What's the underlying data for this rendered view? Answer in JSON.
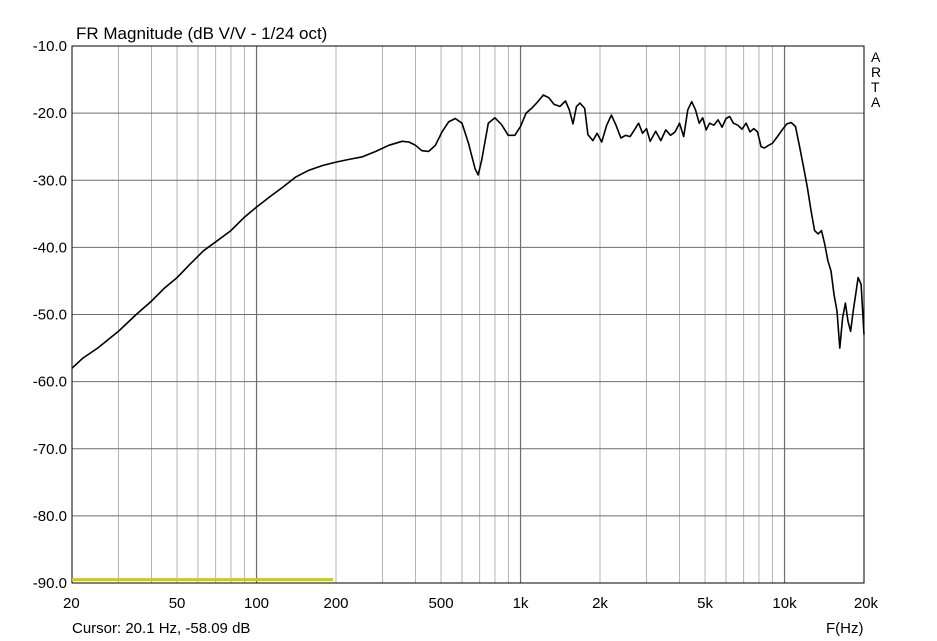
{
  "chart_data": {
    "type": "line",
    "title": "FR Magnitude (dB V/V - 1/24 oct)",
    "xlabel": "F(Hz)",
    "ylabel": "",
    "xscale": "log",
    "xlim": [
      20,
      20000
    ],
    "ylim": [
      -90,
      -10
    ],
    "grid": true,
    "x_ticks": [
      {
        "value": 20,
        "label": "20"
      },
      {
        "value": 50,
        "label": "50"
      },
      {
        "value": 100,
        "label": "100"
      },
      {
        "value": 200,
        "label": "200"
      },
      {
        "value": 500,
        "label": "500"
      },
      {
        "value": 1000,
        "label": "1k"
      },
      {
        "value": 2000,
        "label": "2k"
      },
      {
        "value": 5000,
        "label": "5k"
      },
      {
        "value": 10000,
        "label": "10k"
      },
      {
        "value": 20000,
        "label": "20k"
      }
    ],
    "y_ticks": [
      {
        "value": -10,
        "label": "-10.0"
      },
      {
        "value": -20,
        "label": "-20.0"
      },
      {
        "value": -30,
        "label": "-30.0"
      },
      {
        "value": -40,
        "label": "-40.0"
      },
      {
        "value": -50,
        "label": "-50.0"
      },
      {
        "value": -60,
        "label": "-60.0"
      },
      {
        "value": -70,
        "label": "-70.0"
      },
      {
        "value": -80,
        "label": "-80.0"
      },
      {
        "value": -90,
        "label": "-90.0"
      }
    ],
    "series": [
      {
        "color": "#000000",
        "points": [
          [
            20,
            -58
          ],
          [
            22,
            -56.5
          ],
          [
            25,
            -55
          ],
          [
            30,
            -52.5
          ],
          [
            35,
            -50
          ],
          [
            40,
            -48
          ],
          [
            45,
            -46
          ],
          [
            50,
            -44.5
          ],
          [
            56,
            -42.5
          ],
          [
            63,
            -40.5
          ],
          [
            71,
            -39
          ],
          [
            80,
            -37.5
          ],
          [
            90,
            -35.5
          ],
          [
            100,
            -34
          ],
          [
            112,
            -32.5
          ],
          [
            126,
            -31
          ],
          [
            141,
            -29.5
          ],
          [
            158,
            -28.5
          ],
          [
            178,
            -27.8
          ],
          [
            200,
            -27.3
          ],
          [
            224,
            -26.9
          ],
          [
            252,
            -26.5
          ],
          [
            283,
            -25.7
          ],
          [
            317,
            -24.8
          ],
          [
            356,
            -24.2
          ],
          [
            378,
            -24.3
          ],
          [
            400,
            -24.8
          ],
          [
            423,
            -25.6
          ],
          [
            449,
            -25.7
          ],
          [
            476,
            -24.8
          ],
          [
            504,
            -22.8
          ],
          [
            534,
            -21.3
          ],
          [
            566,
            -20.8
          ],
          [
            600,
            -21.5
          ],
          [
            635,
            -24.5
          ],
          [
            673,
            -28.3
          ],
          [
            691,
            -29.2
          ],
          [
            713,
            -27
          ],
          [
            755,
            -21.5
          ],
          [
            800,
            -20.7
          ],
          [
            847,
            -21.7
          ],
          [
            898,
            -23.3
          ],
          [
            951,
            -23.3
          ],
          [
            1000,
            -22
          ],
          [
            1050,
            -20
          ],
          [
            1100,
            -19.3
          ],
          [
            1150,
            -18.5
          ],
          [
            1220,
            -17.3
          ],
          [
            1280,
            -17.7
          ],
          [
            1340,
            -18.7
          ],
          [
            1410,
            -19
          ],
          [
            1480,
            -18.2
          ],
          [
            1530,
            -19.5
          ],
          [
            1580,
            -21.6
          ],
          [
            1630,
            -19
          ],
          [
            1680,
            -18.5
          ],
          [
            1750,
            -19.3
          ],
          [
            1800,
            -23.2
          ],
          [
            1880,
            -24.1
          ],
          [
            1950,
            -23
          ],
          [
            2030,
            -24.3
          ],
          [
            2120,
            -21.8
          ],
          [
            2210,
            -20.3
          ],
          [
            2300,
            -21.8
          ],
          [
            2400,
            -23.7
          ],
          [
            2500,
            -23.3
          ],
          [
            2600,
            -23.5
          ],
          [
            2700,
            -22.5
          ],
          [
            2800,
            -21.5
          ],
          [
            2900,
            -23
          ],
          [
            3000,
            -22.3
          ],
          [
            3100,
            -24.2
          ],
          [
            3250,
            -22.7
          ],
          [
            3400,
            -24.1
          ],
          [
            3550,
            -22.5
          ],
          [
            3700,
            -23.3
          ],
          [
            3850,
            -22.8
          ],
          [
            4000,
            -21.5
          ],
          [
            4150,
            -23.5
          ],
          [
            4300,
            -19.5
          ],
          [
            4450,
            -18.3
          ],
          [
            4600,
            -19.5
          ],
          [
            4750,
            -21.5
          ],
          [
            4900,
            -20.7
          ],
          [
            5050,
            -22.5
          ],
          [
            5200,
            -21.5
          ],
          [
            5400,
            -21.8
          ],
          [
            5600,
            -21
          ],
          [
            5800,
            -22.1
          ],
          [
            6000,
            -20.8
          ],
          [
            6200,
            -20.5
          ],
          [
            6400,
            -21.5
          ],
          [
            6650,
            -21.8
          ],
          [
            6900,
            -22.4
          ],
          [
            7150,
            -21.5
          ],
          [
            7400,
            -22.8
          ],
          [
            7650,
            -22.3
          ],
          [
            7900,
            -22.8
          ],
          [
            8150,
            -25
          ],
          [
            8400,
            -25.2
          ],
          [
            8700,
            -24.8
          ],
          [
            9000,
            -24.5
          ],
          [
            9400,
            -23.5
          ],
          [
            9800,
            -22.5
          ],
          [
            10200,
            -21.6
          ],
          [
            10600,
            -21.4
          ],
          [
            11000,
            -22
          ],
          [
            11400,
            -25
          ],
          [
            11800,
            -28
          ],
          [
            12200,
            -31
          ],
          [
            12600,
            -34.5
          ],
          [
            13000,
            -37.5
          ],
          [
            13400,
            -38
          ],
          [
            13800,
            -37.5
          ],
          [
            14200,
            -39.5
          ],
          [
            14600,
            -42
          ],
          [
            15000,
            -43.5
          ],
          [
            15400,
            -47
          ],
          [
            15800,
            -49.5
          ],
          [
            16200,
            -55
          ],
          [
            16600,
            -50.5
          ],
          [
            17000,
            -48.3
          ],
          [
            17400,
            -51
          ],
          [
            17800,
            -52.5
          ],
          [
            18200,
            -49.5
          ],
          [
            18600,
            -47
          ],
          [
            19000,
            -44.5
          ],
          [
            19500,
            -45.5
          ],
          [
            20000,
            -53
          ]
        ]
      },
      {
        "color": "#c8c826",
        "points": [
          [
            20,
            -89.5
          ],
          [
            195,
            -89.5
          ]
        ]
      }
    ]
  },
  "footer": {
    "cursor": "Cursor: 20.1 Hz, -58.09 dB",
    "xlabel": "F(Hz)"
  },
  "brand": [
    "A",
    "R",
    "T",
    "A"
  ]
}
